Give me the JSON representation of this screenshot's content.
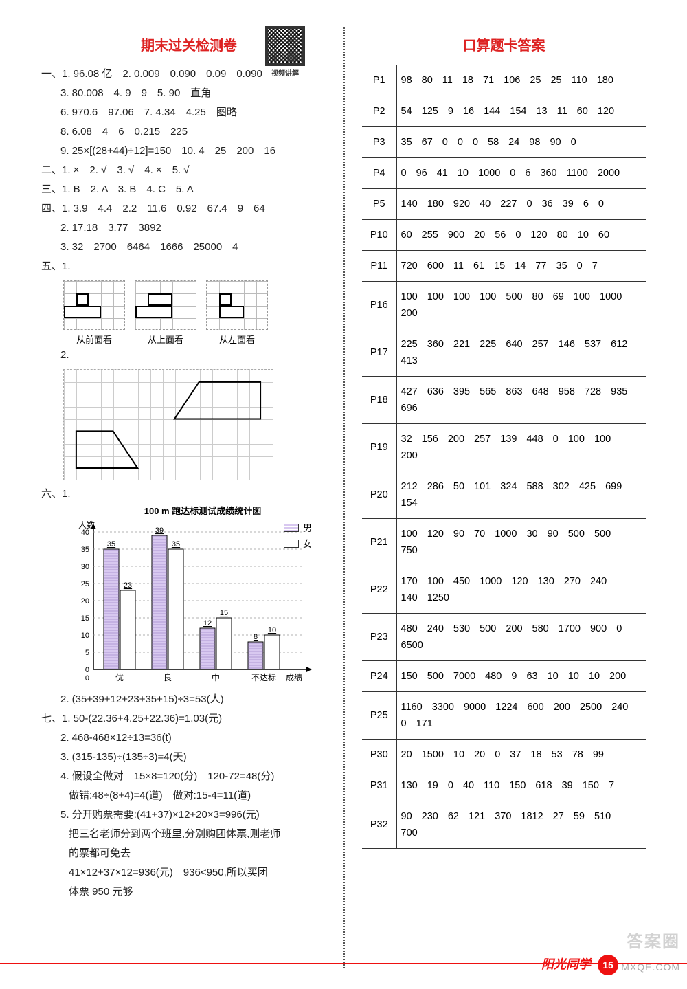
{
  "left": {
    "title": "期末过关检测卷",
    "qr_label": "视频讲解",
    "lines": {
      "l1": "一、1. 96.08 亿　2. 0.009　0.090　0.09　0.090",
      "l2": "3. 80.008　4. 9　9　5. 90　直角",
      "l3": "6. 970.6　97.06　7. 4.34　4.25　图略",
      "l4": "8. 6.08　4　6　0.215　225",
      "l5": "9. 25×[(28+44)÷12]=150　10. 4　25　200　16",
      "l6": "二、1. ×　2. √　3. √　4. ×　5. √",
      "l7": "三、1. B　2. A　3. B　4. C　5. A",
      "l8": "四、1. 3.9　4.4　2.2　11.6　0.92　67.4　9　64",
      "l9": "2. 17.18　3.77　3892",
      "l10": "3. 32　2700　6464　1666　25000　4",
      "l11": "五、1.",
      "cap_front": "从前面看",
      "cap_top": "从上面看",
      "cap_left": "从左面看",
      "l12": "2.",
      "l13": "六、1.",
      "chart_title": "100 m 跑达标测试成绩统计图",
      "y_label": "人数",
      "legend_male": "男",
      "legend_female": "女",
      "x_labels": [
        "优",
        "良",
        "中",
        "不达标",
        "成绩"
      ],
      "l14": "2. (35+39+12+23+35+15)÷3=53(人)",
      "l15": "七、1. 50-(22.36+4.25+22.36)=1.03(元)",
      "l16": "2. 468-468×12÷13=36(t)",
      "l17": "3. (315-135)÷(135÷3)=4(天)",
      "l18": "4. 假设全做对　15×8=120(分)　120-72=48(分)",
      "l19": "做错:48÷(8+4)=4(道)　做对:15-4=11(道)",
      "l20": "5. 分开购票需要:(41+37)×12+20×3=996(元)",
      "l21": "把三名老师分到两个班里,分别购团体票,则老师",
      "l22": "的票都可免去",
      "l23": "41×12+37×12=936(元)　936<950,所以买团",
      "l24": "体票 950 元够"
    },
    "chart": {
      "categories": [
        "优",
        "良",
        "中",
        "不达标"
      ],
      "male": [
        35,
        39,
        12,
        8
      ],
      "female": [
        23,
        35,
        15,
        10
      ],
      "ymax": 40,
      "ytick": 5,
      "male_color": "#d8c8f0",
      "female_color": "#ffffff",
      "axis_color": "#000000",
      "bar_border": "#000000"
    }
  },
  "right": {
    "title": "口算题卡答案",
    "rows": [
      {
        "p": "P1",
        "v": [
          "98",
          "80",
          "11",
          "18",
          "71",
          "106",
          "25",
          "25",
          "110",
          "180"
        ]
      },
      {
        "p": "P2",
        "v": [
          "54",
          "125",
          "9",
          "16",
          "144",
          "154",
          "13",
          "11",
          "60",
          "120"
        ]
      },
      {
        "p": "P3",
        "v": [
          "35",
          "67",
          "0",
          "0",
          "0",
          "58",
          "24",
          "98",
          "90",
          "0"
        ]
      },
      {
        "p": "P4",
        "v": [
          "0",
          "96",
          "41",
          "10",
          "1000",
          "0",
          "6",
          "360",
          "1100",
          "2000"
        ]
      },
      {
        "p": "P5",
        "v": [
          "140",
          "180",
          "920",
          "40",
          "227",
          "0",
          "36",
          "39",
          "6",
          "0"
        ]
      },
      {
        "p": "P10",
        "v": [
          "60",
          "255",
          "900",
          "20",
          "56",
          "0",
          "120",
          "80",
          "10",
          "60"
        ]
      },
      {
        "p": "P11",
        "v": [
          "720",
          "600",
          "11",
          "61",
          "15",
          "14",
          "77",
          "35",
          "0",
          "7"
        ]
      },
      {
        "p": "P16",
        "v": [
          "100",
          "100",
          "100",
          "100",
          "500",
          "80",
          "69",
          "100",
          "1000",
          "200"
        ]
      },
      {
        "p": "P17",
        "v": [
          "225",
          "360",
          "221",
          "225",
          "640",
          "257",
          "146",
          "537",
          "612",
          "413"
        ]
      },
      {
        "p": "P18",
        "v": [
          "427",
          "636",
          "395",
          "565",
          "863",
          "648",
          "958",
          "728",
          "935",
          "696"
        ]
      },
      {
        "p": "P19",
        "v": [
          "32",
          "156",
          "200",
          "257",
          "139",
          "448",
          "0",
          "100",
          "100",
          "200"
        ]
      },
      {
        "p": "P20",
        "v": [
          "212",
          "286",
          "50",
          "101",
          "324",
          "588",
          "302",
          "425",
          "699",
          "154"
        ]
      },
      {
        "p": "P21",
        "v": [
          "100",
          "120",
          "90",
          "70",
          "1000",
          "30",
          "90",
          "500",
          "500",
          "750"
        ]
      },
      {
        "p": "P22",
        "v": [
          "170",
          "100",
          "450",
          "1000",
          "120",
          "130",
          "270",
          "240",
          "140",
          "1250"
        ]
      },
      {
        "p": "P23",
        "v": [
          "480",
          "240",
          "530",
          "500",
          "200",
          "580",
          "1700",
          "900",
          "0",
          "6500"
        ]
      },
      {
        "p": "P24",
        "v": [
          "150",
          "500",
          "7000",
          "480",
          "9",
          "63",
          "10",
          "10",
          "10",
          "200"
        ]
      },
      {
        "p": "P25",
        "v": [
          "1160",
          "3300",
          "9000",
          "1224",
          "600",
          "200",
          "2500",
          "240",
          "0",
          "171"
        ]
      },
      {
        "p": "P30",
        "v": [
          "20",
          "1500",
          "10",
          "20",
          "0",
          "37",
          "18",
          "53",
          "78",
          "99"
        ]
      },
      {
        "p": "P31",
        "v": [
          "130",
          "19",
          "0",
          "40",
          "110",
          "150",
          "618",
          "39",
          "150",
          "7"
        ]
      },
      {
        "p": "P32",
        "v": [
          "90",
          "230",
          "62",
          "121",
          "370",
          "1812",
          "27",
          "59",
          "510",
          "700"
        ]
      }
    ]
  },
  "footer": {
    "logo": "阳光同学",
    "page": "15",
    "watermark1": "答案圈",
    "watermark2": "MXQE.COM"
  }
}
